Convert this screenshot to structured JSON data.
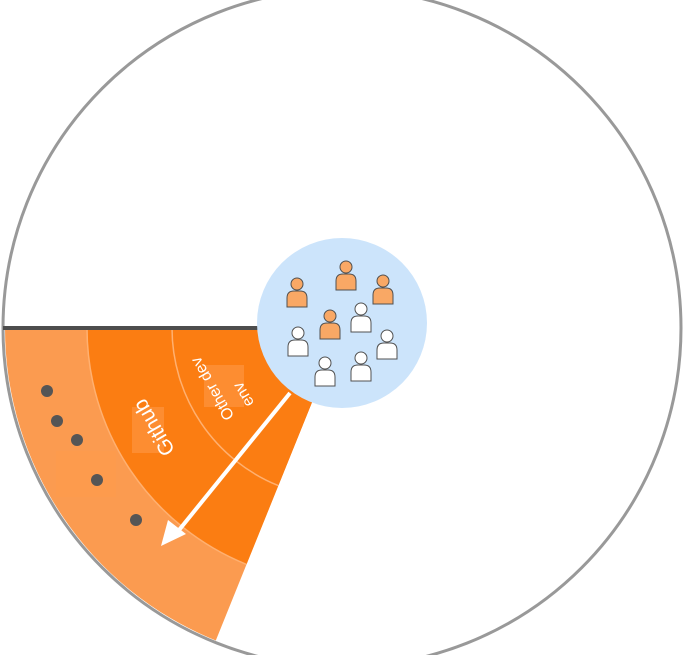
{
  "colors": {
    "outer_stroke": "#999999",
    "boundary_line": "#4d4d4d",
    "outer_band": "#fb9b50",
    "middle_band": "#fb7d12",
    "inner_band": "#fb7d12",
    "band_divider": "#ffb070",
    "highlight_patch": "#ff9a4a",
    "hub_fill": "#cce4fb",
    "person_orange": "#f9a865",
    "person_white": "#ffffff",
    "person_stroke": "#505050",
    "dot": "#555555",
    "arrow": "#ffffff"
  },
  "rings": {
    "middle_label": "Github",
    "inner_label_line1": "Other dev",
    "inner_label_line2": "env"
  },
  "hub": {
    "people": [
      {
        "tone": "orange",
        "icon": "person-icon"
      },
      {
        "tone": "orange",
        "icon": "person-icon"
      },
      {
        "tone": "orange",
        "icon": "person-icon"
      },
      {
        "tone": "white",
        "icon": "person-icon"
      },
      {
        "tone": "orange",
        "icon": "person-icon"
      },
      {
        "tone": "white",
        "icon": "person-icon"
      },
      {
        "tone": "white",
        "icon": "person-icon"
      },
      {
        "tone": "white",
        "icon": "person-icon"
      },
      {
        "tone": "white",
        "icon": "person-icon"
      }
    ]
  },
  "outer_band": {
    "dot_count": 5
  },
  "arrow": {
    "direction": "outward"
  }
}
